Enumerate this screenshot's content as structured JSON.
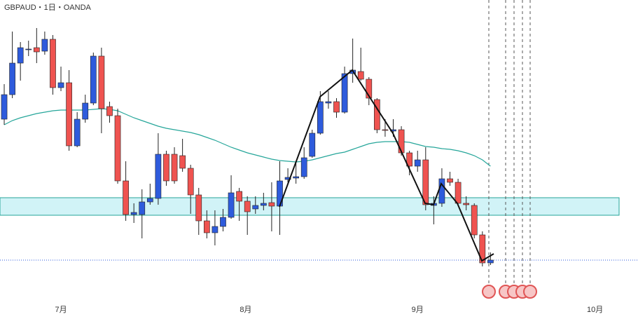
{
  "chart_data": {
    "type": "candlestick",
    "title": "GBPAUD・1日・OANDA",
    "x": [
      0,
      1,
      2,
      3,
      4,
      5,
      6,
      7,
      8,
      9,
      10,
      11,
      12,
      13,
      14,
      15,
      16,
      17,
      18,
      19,
      20,
      21,
      22,
      23,
      24,
      25,
      26,
      27,
      28,
      29,
      30,
      31,
      32,
      33,
      34,
      35,
      36,
      37,
      38,
      39,
      40,
      41,
      42,
      43,
      44,
      45,
      46,
      47,
      48,
      49,
      50,
      51,
      52,
      53,
      54,
      55,
      56,
      57,
      58,
      59,
      60
    ],
    "open": [
      285,
      320,
      365,
      385,
      387,
      382,
      399,
      330,
      337,
      247,
      285,
      308,
      375,
      303,
      290,
      197,
      149,
      149,
      167,
      172,
      235,
      235,
      233,
      215,
      177,
      140,
      123,
      132,
      145,
      182,
      168,
      157,
      162,
      166,
      161,
      199,
      201,
      203,
      232,
      265,
      308,
      310,
      295,
      350,
      353,
      342,
      313,
      270,
      268,
      270,
      237,
      218,
      227,
      162,
      165,
      200,
      195,
      165,
      162,
      120,
      80
    ],
    "high": [
      335,
      410,
      395,
      397,
      415,
      410,
      405,
      360,
      355,
      295,
      320,
      380,
      387,
      310,
      300,
      225,
      165,
      185,
      193,
      265,
      240,
      245,
      257,
      220,
      187,
      155,
      155,
      157,
      205,
      187,
      175,
      175,
      180,
      195,
      225,
      215,
      223,
      245,
      270,
      325,
      325,
      315,
      360,
      400,
      387,
      345,
      315,
      285,
      285,
      275,
      240,
      240,
      245,
      175,
      215,
      210,
      200,
      175,
      165,
      125,
      95
    ],
    "low": [
      277,
      315,
      340,
      375,
      365,
      377,
      320,
      325,
      240,
      245,
      280,
      305,
      265,
      280,
      193,
      140,
      137,
      115,
      163,
      163,
      190,
      193,
      210,
      150,
      120,
      115,
      105,
      125,
      143,
      140,
      120,
      150,
      155,
      125,
      120,
      195,
      193,
      200,
      230,
      263,
      300,
      287,
      293,
      337,
      340,
      305,
      265,
      260,
      260,
      233,
      205,
      210,
      155,
      135,
      160,
      190,
      163,
      155,
      115,
      75,
      77
    ],
    "close": [
      320,
      365,
      387,
      385,
      381,
      399,
      330,
      337,
      247,
      285,
      308,
      375,
      300,
      290,
      197,
      149,
      152,
      167,
      172,
      235,
      197,
      197,
      215,
      177,
      140,
      123,
      132,
      145,
      180,
      168,
      153,
      162,
      165,
      161,
      197,
      202,
      203,
      230,
      265,
      310,
      310,
      295,
      350,
      355,
      342,
      315,
      270,
      269,
      270,
      237,
      218,
      227,
      163,
      165,
      200,
      195,
      165,
      163,
      120,
      80,
      84
    ],
    "up_color": "#2e5bdc",
    "down_color": "#ef5350",
    "ma": {
      "color": "#26a69a",
      "values": [
        277,
        283,
        287,
        290,
        293,
        295,
        297,
        298,
        298,
        298,
        298,
        299,
        300,
        299,
        297,
        292,
        287,
        283,
        279,
        275,
        272,
        270,
        268,
        266,
        263,
        259,
        255,
        250,
        245,
        241,
        237,
        234,
        231,
        228,
        226,
        225,
        224,
        225,
        227,
        230,
        233,
        236,
        238,
        242,
        246,
        250,
        252,
        253,
        253,
        253,
        252,
        249,
        246,
        245,
        243,
        242,
        240,
        237,
        233,
        227,
        218
      ]
    },
    "xlim": [
      -0.52,
      78.2
    ],
    "xticks": [
      {
        "value": 7,
        "label": "7月"
      },
      {
        "value": 29.8,
        "label": "8月"
      },
      {
        "value": 51,
        "label": "9月"
      },
      {
        "value": 72.9,
        "label": "10月"
      }
    ],
    "ylim": [
      0,
      455
    ]
  }
}
